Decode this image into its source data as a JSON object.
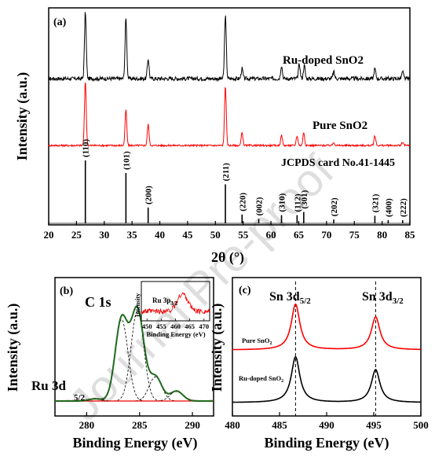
{
  "watermark": "Journal Pre-proof",
  "chart_data": [
    {
      "type": "line",
      "panel": "(a)",
      "xlabel": "2θ (°)",
      "ylabel": "Intensity (a.u.)",
      "xlim": [
        20,
        85
      ],
      "xticks": [
        20,
        25,
        30,
        35,
        40,
        45,
        50,
        55,
        60,
        65,
        70,
        75,
        80,
        85
      ],
      "series": [
        {
          "name": "Ru-doped SnO2",
          "color": "#000000",
          "peaks": [
            {
              "x": 26.6,
              "h": 1.0
            },
            {
              "x": 33.9,
              "h": 0.9
            },
            {
              "x": 37.9,
              "h": 0.3
            },
            {
              "x": 51.8,
              "h": 0.95
            },
            {
              "x": 54.8,
              "h": 0.15
            },
            {
              "x": 61.9,
              "h": 0.2
            },
            {
              "x": 65.1,
              "h": 0.22
            },
            {
              "x": 66.0,
              "h": 0.2
            },
            {
              "x": 71.3,
              "h": 0.1
            },
            {
              "x": 78.7,
              "h": 0.15
            },
            {
              "x": 83.7,
              "h": 0.1
            }
          ]
        },
        {
          "name": "Pure SnO2",
          "color": "#ff0000",
          "peaks": [
            {
              "x": 26.6,
              "h": 1.0
            },
            {
              "x": 33.9,
              "h": 0.55
            },
            {
              "x": 37.9,
              "h": 0.33
            },
            {
              "x": 51.8,
              "h": 0.93
            },
            {
              "x": 54.8,
              "h": 0.2
            },
            {
              "x": 61.9,
              "h": 0.16
            },
            {
              "x": 64.7,
              "h": 0.15
            },
            {
              "x": 65.9,
              "h": 0.2
            },
            {
              "x": 71.3,
              "h": 0.05
            },
            {
              "x": 78.7,
              "h": 0.15
            },
            {
              "x": 83.7,
              "h": 0.05
            }
          ]
        }
      ],
      "reference": {
        "name": "JCPDS card No.41-1445",
        "lines": [
          {
            "x": 26.6,
            "hkl": "(110)",
            "h": 1.0
          },
          {
            "x": 33.9,
            "hkl": "(101)",
            "h": 0.8
          },
          {
            "x": 37.9,
            "hkl": "(200)",
            "h": 0.25
          },
          {
            "x": 51.8,
            "hkl": "(211)",
            "h": 0.62
          },
          {
            "x": 54.8,
            "hkl": "(220)",
            "h": 0.14
          },
          {
            "x": 57.8,
            "hkl": "(002)",
            "h": 0.07
          },
          {
            "x": 61.9,
            "hkl": "(310)",
            "h": 0.13
          },
          {
            "x": 64.7,
            "hkl": "(112)",
            "h": 0.13
          },
          {
            "x": 65.9,
            "hkl": "(301)",
            "h": 0.18
          },
          {
            "x": 71.3,
            "hkl": "(202)",
            "h": 0.06
          },
          {
            "x": 78.7,
            "hkl": "(321)",
            "h": 0.12
          },
          {
            "x": 81.1,
            "hkl": "(400)",
            "h": 0.05
          },
          {
            "x": 83.7,
            "hkl": "(222)",
            "h": 0.05
          }
        ]
      }
    },
    {
      "type": "line",
      "panel": "(b)",
      "xlabel": "Binding Energy (eV)",
      "ylabel": "Intensity (a.u.)",
      "xlim": [
        277,
        292
      ],
      "xticks": [
        280,
        285,
        290
      ],
      "annotations": [
        "C 1s",
        "Ru 3d",
        "5/2"
      ],
      "components": [
        {
          "center": 280.8,
          "height": 0.02
        },
        {
          "center": 283.3,
          "height": 0.74
        },
        {
          "center": 284.8,
          "height": 0.82
        },
        {
          "center": 286.5,
          "height": 0.22
        },
        {
          "center": 288.5,
          "height": 0.09
        }
      ],
      "inset": {
        "title": "Ru 3p",
        "title_sub": "3/2",
        "xlabel": "Binding Energy (eV)",
        "ylabel": "Intensity",
        "xticks": [
          450,
          455,
          460,
          465,
          470
        ],
        "xlim": [
          448,
          472
        ],
        "peak": 462.5
      }
    },
    {
      "type": "line",
      "panel": "(c)",
      "xlabel": "Binding Energy (eV)",
      "ylabel": "Intensity (a.u.)",
      "xlim": [
        480,
        500
      ],
      "xticks": [
        480,
        485,
        490,
        495,
        500
      ],
      "annotations": [
        "Sn 3d",
        "5/2",
        "Sn 3d",
        "3/2"
      ],
      "reference_lines": [
        486.7,
        495.2
      ],
      "series": [
        {
          "name": "Pure SnO",
          "name_sub": "2",
          "color": "#ff0000",
          "peaks": [
            {
              "x": 486.7,
              "h": 1.0
            },
            {
              "x": 495.2,
              "h": 0.72
            }
          ]
        },
        {
          "name": "Ru-doped SnO",
          "name_sub": "2",
          "color": "#000000",
          "peaks": [
            {
              "x": 486.7,
              "h": 1.0
            },
            {
              "x": 495.2,
              "h": 0.72
            }
          ]
        }
      ]
    }
  ]
}
